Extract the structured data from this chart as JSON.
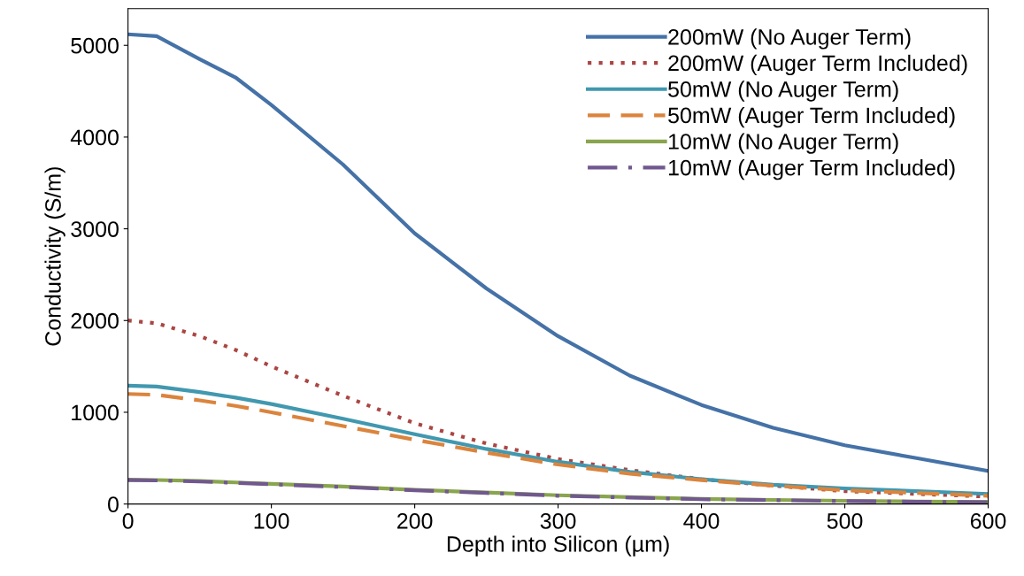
{
  "chart_data": {
    "type": "line",
    "xlabel": "Depth into Silicon (µm)",
    "ylabel": "Conductivity (S/m)",
    "xlim": [
      0,
      600
    ],
    "xticks": [
      0,
      100,
      200,
      300,
      400,
      500,
      600
    ],
    "ylim": [
      0,
      5400
    ],
    "yticks": [
      0,
      1000,
      2000,
      3000,
      4000,
      5000
    ],
    "grid": false,
    "legend": "top right",
    "marker": "none",
    "x": [
      0,
      20,
      50,
      75,
      100,
      150,
      200,
      250,
      300,
      350,
      400,
      450,
      500,
      550,
      600
    ],
    "series": [
      {
        "name": "200mW (No Auger Term)",
        "color": "#4572a7",
        "line_style": "solid",
        "values": [
          5120,
          5100,
          4850,
          4650,
          4350,
          3700,
          2950,
          2350,
          1830,
          1400,
          1080,
          830,
          640,
          500,
          360
        ]
      },
      {
        "name": "200mW (Auger Term Included)",
        "color": "#aa4643",
        "line_style": "dotted",
        "values": [
          2000,
          1970,
          1830,
          1680,
          1500,
          1180,
          880,
          660,
          490,
          370,
          270,
          200,
          140,
          110,
          80
        ]
      },
      {
        "name": "50mW (No Auger Term)",
        "color": "#4198af",
        "line_style": "solid",
        "values": [
          1290,
          1280,
          1220,
          1160,
          1090,
          930,
          760,
          600,
          460,
          350,
          270,
          210,
          170,
          140,
          110
        ]
      },
      {
        "name": "50mW (Auger Term Included)",
        "color": "#db843d",
        "line_style": "dashed",
        "values": [
          1200,
          1190,
          1130,
          1070,
          1000,
          850,
          700,
          560,
          430,
          330,
          260,
          200,
          150,
          120,
          90
        ]
      },
      {
        "name": "10mW (No Auger Term)",
        "color": "#89a54e",
        "line_style": "solid",
        "values": [
          265,
          262,
          250,
          235,
          220,
          190,
          155,
          125,
          95,
          75,
          55,
          45,
          35,
          28,
          22
        ]
      },
      {
        "name": "10mW (Auger Term Included)",
        "color": "#71588f",
        "line_style": "dashdot",
        "values": [
          260,
          257,
          245,
          230,
          215,
          185,
          150,
          120,
          90,
          70,
          52,
          42,
          32,
          25,
          20
        ]
      }
    ]
  }
}
